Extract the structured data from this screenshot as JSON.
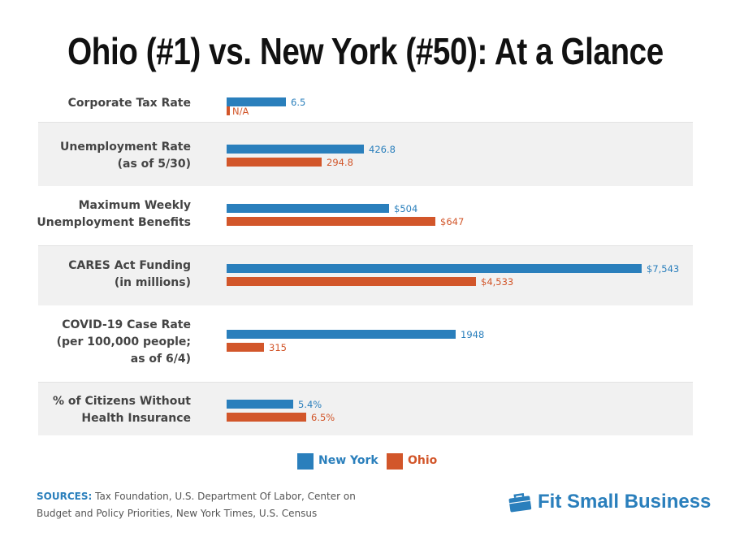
{
  "chart_data": {
    "type": "bar",
    "orientation": "horizontal",
    "title": "Ohio (#1) vs. New York (#50): At a Glance",
    "categories": [
      "Corporate Tax Rate",
      "Unemployment Rate (as of 5/30)",
      "Maximum Weekly Unemployment Benefits",
      "CARES Act Funding (in millions)",
      "COVID-19 Case Rate (per 100,000 people; as of 6/4)",
      "% of Citizens Without Health Insurance"
    ],
    "category_lines": [
      [
        "Corporate Tax Rate"
      ],
      [
        "Unemployment Rate",
        "(as of 5/30)"
      ],
      [
        "Maximum Weekly",
        "Unemployment Benefits"
      ],
      [
        "CARES Act Funding",
        "(in millions)"
      ],
      [
        "COVID-19 Case Rate",
        "(per 100,000 people;",
        "as of 6/4)"
      ],
      [
        "% of Citizens Without",
        "Health Insurance"
      ]
    ],
    "series": [
      {
        "name": "New York",
        "color": "#2a7fbc",
        "values": [
          6.5,
          426.8,
          504,
          7543,
          1948,
          5.4
        ],
        "labels": [
          "6.5",
          "426.8",
          "$504",
          "$7,543",
          "1948",
          "5.4%"
        ]
      },
      {
        "name": "Ohio",
        "color": "#d2562a",
        "values": [
          null,
          294.8,
          647,
          4533,
          315,
          6.5
        ],
        "labels": [
          "N/A",
          "294.8",
          "$647",
          "$4,533",
          "315",
          "6.5%"
        ]
      }
    ],
    "legend": "bottom-center",
    "grid": false,
    "note": "each row uses its own scale"
  },
  "sources": {
    "label": "SOURCES:",
    "text": "Tax Foundation, U.S. Department Of Labor, Center on Budget and Policy Priorities, New York Times, U.S. Census"
  },
  "logo": {
    "text": "Fit Small Business",
    "icon": "briefcase-icon"
  }
}
